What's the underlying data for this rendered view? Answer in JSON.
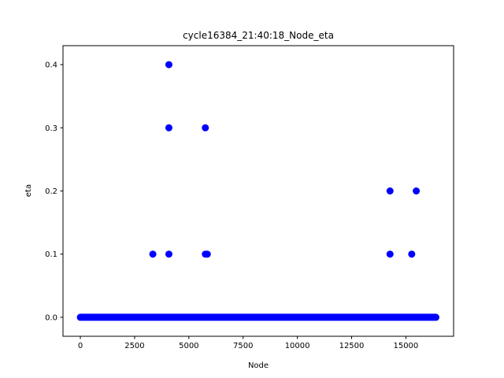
{
  "chart_data": {
    "type": "scatter",
    "title": "cycle16384_21:40:18_Node_eta",
    "xlabel": "Node",
    "ylabel": "eta",
    "xlim": [
      -800,
      17200
    ],
    "ylim": [
      -0.03,
      0.43
    ],
    "xticks": [
      0,
      2500,
      5000,
      7500,
      10000,
      12500,
      15000
    ],
    "yticks": [
      0.0,
      0.1,
      0.2,
      0.3,
      0.4
    ],
    "xtick_labels": [
      "0",
      "2500",
      "5000",
      "7500",
      "10000",
      "12500",
      "15000"
    ],
    "ytick_labels": [
      "0.0",
      "0.1",
      "0.2",
      "0.3",
      "0.4"
    ],
    "grid": false,
    "color": "#0000ff",
    "baseline": {
      "x_start": 0,
      "x_end": 16383,
      "y": 0.0
    },
    "points": [
      {
        "x": 3340,
        "y": 0.1
      },
      {
        "x": 4080,
        "y": 0.4
      },
      {
        "x": 4080,
        "y": 0.3
      },
      {
        "x": 4080,
        "y": 0.1
      },
      {
        "x": 5760,
        "y": 0.3
      },
      {
        "x": 5760,
        "y": 0.1
      },
      {
        "x": 5850,
        "y": 0.1
      },
      {
        "x": 14270,
        "y": 0.2
      },
      {
        "x": 14270,
        "y": 0.1
      },
      {
        "x": 15270,
        "y": 0.1
      },
      {
        "x": 15480,
        "y": 0.2
      }
    ]
  }
}
